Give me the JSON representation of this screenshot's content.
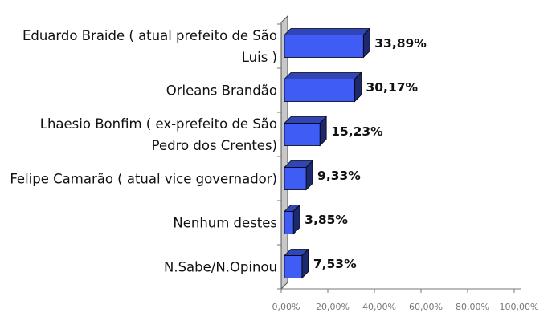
{
  "chart_data": {
    "type": "bar",
    "orientation": "horizontal",
    "categories": [
      "Eduardo Braide ( atual prefeito de São Luis )",
      "Orleans Brandão",
      "Lhaesio Bonfim ( ex-prefeito de São Pedro dos Crentes)",
      "Felipe Camarão ( atual vice governador)",
      "Nenhum destes",
      "N.Sabe/N.Opinou"
    ],
    "values": [
      33.89,
      30.17,
      15.23,
      9.33,
      3.85,
      7.53
    ],
    "value_labels": [
      "33,89%",
      "30,17%",
      "15,23%",
      "9,33%",
      "3,85%",
      "7,53%"
    ],
    "color": "#3f5cf5",
    "xlim": [
      0,
      100
    ],
    "xticks": [
      {
        "value": 0,
        "label": "0,00%"
      },
      {
        "value": 20,
        "label": "20,00%"
      },
      {
        "value": 40,
        "label": "40,00%"
      },
      {
        "value": 60,
        "label": "60,00%"
      },
      {
        "value": 80,
        "label": "80,00%"
      },
      {
        "value": 100,
        "label": "100,00%"
      }
    ]
  }
}
